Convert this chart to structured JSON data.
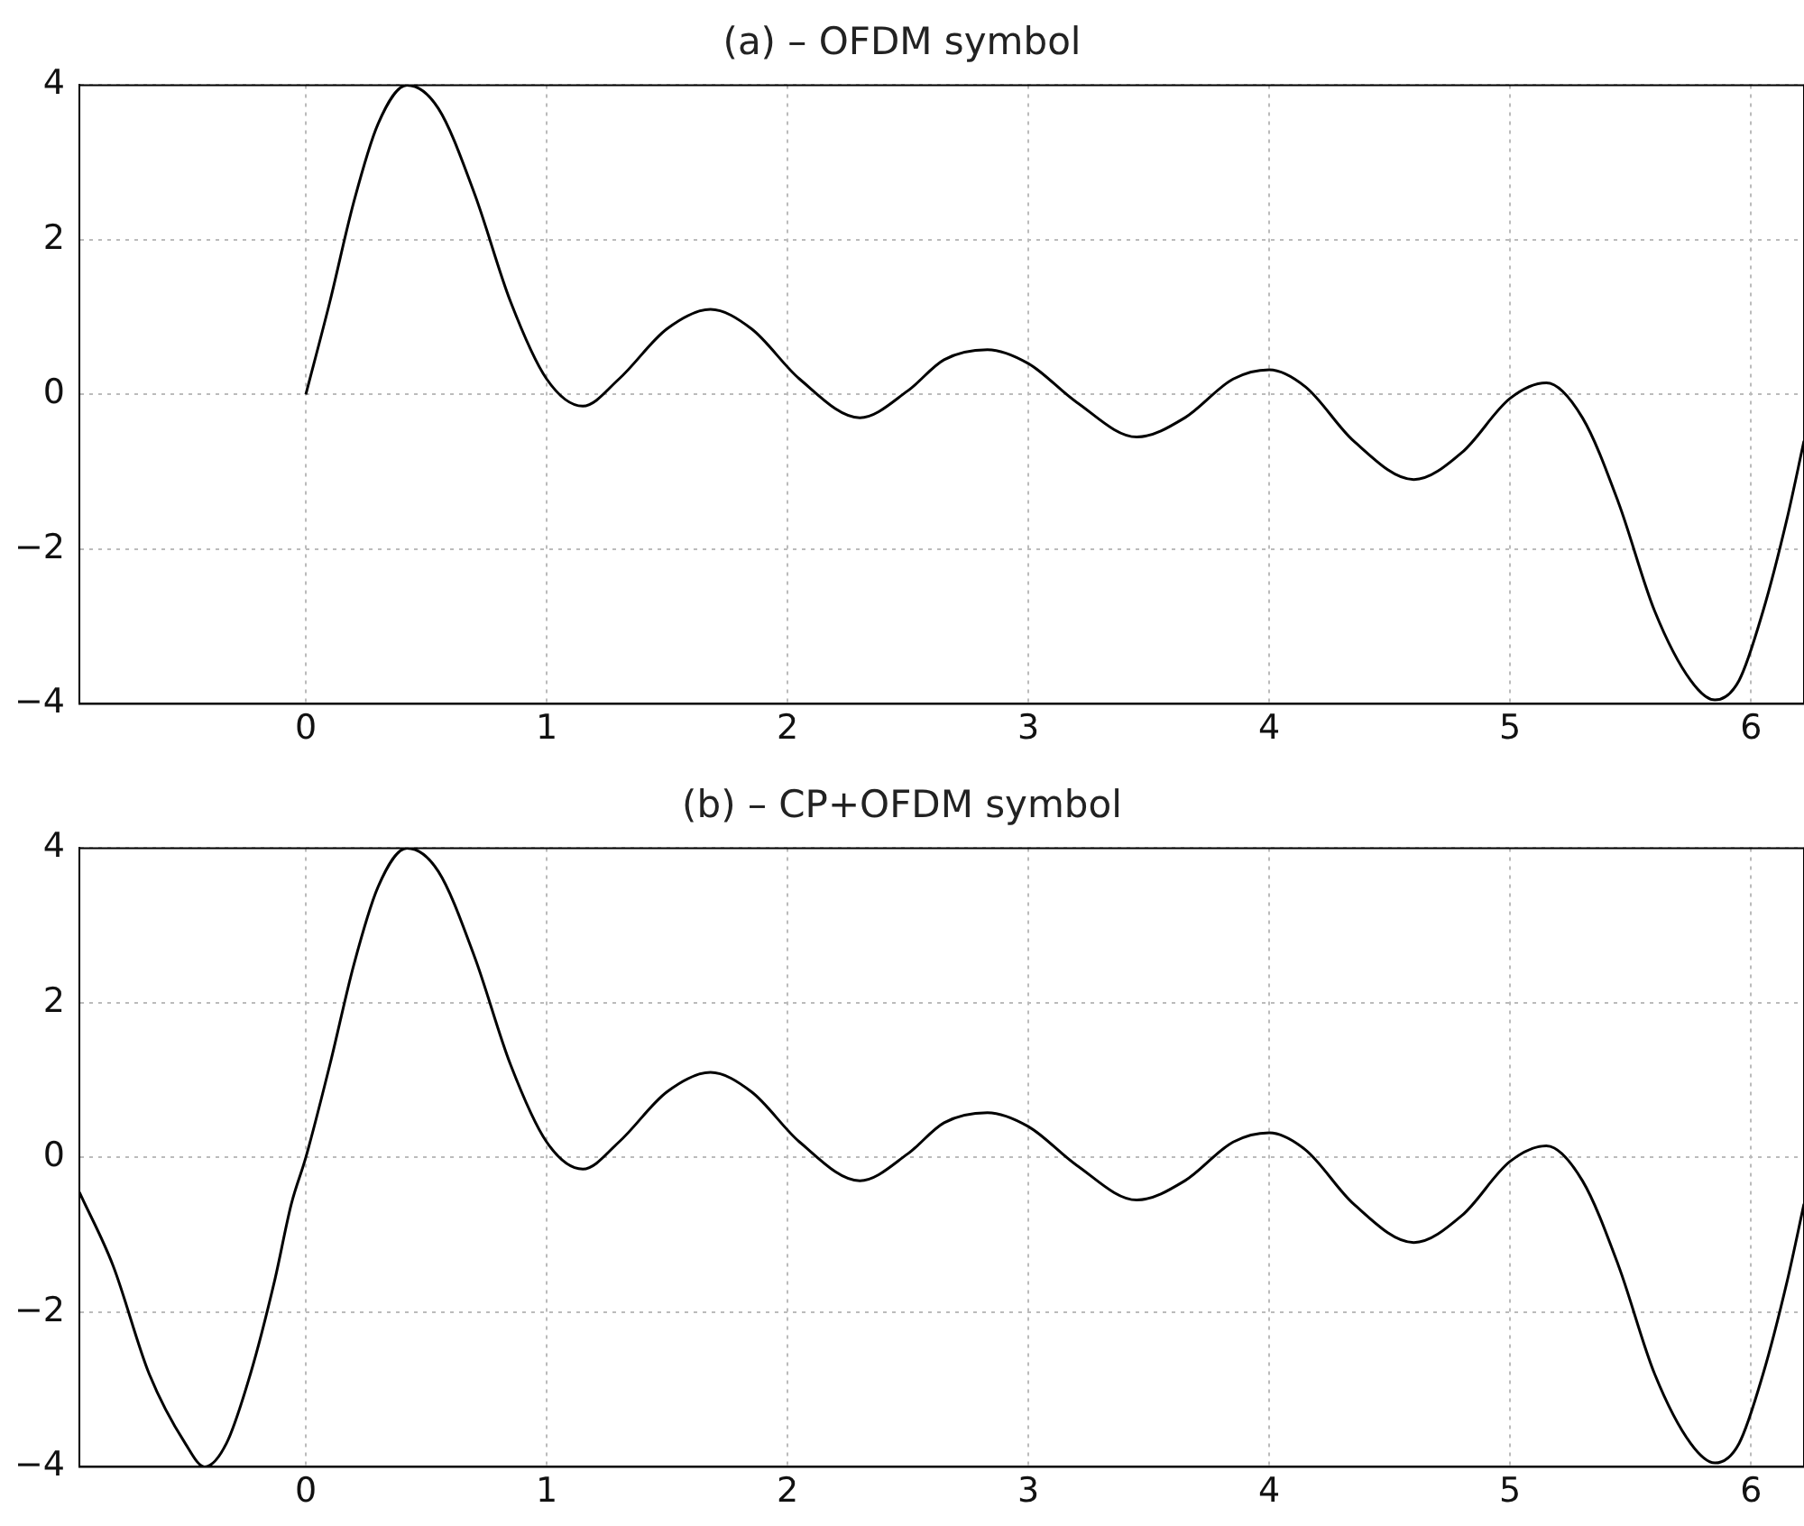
{
  "chart_data": [
    {
      "type": "line",
      "title": "(a) – OFDM symbol",
      "xlim": [
        -0.94,
        6.22
      ],
      "xticks": [
        0,
        1,
        2,
        3,
        4,
        5,
        6
      ],
      "ylim": [
        -4,
        4
      ],
      "yticks": [
        -4,
        -2,
        0,
        2,
        4
      ],
      "grid": true,
      "series": [
        {
          "color": "#000000",
          "x": [
            0,
            0.1,
            0.2,
            0.3,
            0.42,
            0.55,
            0.7,
            0.85,
            1.0,
            1.15,
            1.3,
            1.5,
            1.68,
            1.85,
            2.05,
            2.3,
            2.5,
            2.65,
            2.83,
            3.0,
            3.2,
            3.45,
            3.65,
            3.85,
            4.0,
            4.15,
            4.35,
            4.6,
            4.8,
            5.0,
            5.15,
            5.3,
            5.45,
            5.6,
            5.75,
            5.85,
            5.95,
            6.05,
            6.15,
            6.22
          ],
          "values": [
            0,
            1.2,
            2.5,
            3.5,
            4.0,
            3.7,
            2.6,
            1.2,
            0.2,
            -0.15,
            0.2,
            0.85,
            1.1,
            0.85,
            0.2,
            -0.3,
            0.05,
            0.45,
            0.58,
            0.4,
            -0.1,
            -0.55,
            -0.3,
            0.2,
            0.32,
            0.1,
            -0.6,
            -1.1,
            -0.75,
            -0.05,
            0.15,
            -0.3,
            -1.4,
            -2.8,
            -3.7,
            -3.95,
            -3.7,
            -2.8,
            -1.6,
            -0.6
          ]
        }
      ]
    },
    {
      "type": "line",
      "title": "(b) – CP+OFDM symbol",
      "xlim": [
        -0.94,
        6.22
      ],
      "xticks": [
        0,
        1,
        2,
        3,
        4,
        5,
        6
      ],
      "ylim": [
        -4,
        4
      ],
      "yticks": [
        -4,
        -2,
        0,
        2,
        4
      ],
      "grid": true,
      "series": [
        {
          "color": "#000000",
          "x": [
            -0.94,
            -0.8,
            -0.65,
            -0.5,
            -0.42,
            -0.33,
            -0.23,
            -0.13,
            -0.06,
            0,
            0.1,
            0.2,
            0.3,
            0.42,
            0.55,
            0.7,
            0.85,
            1.0,
            1.15,
            1.3,
            1.5,
            1.68,
            1.85,
            2.05,
            2.3,
            2.5,
            2.65,
            2.83,
            3.0,
            3.2,
            3.45,
            3.65,
            3.85,
            4.0,
            4.15,
            4.35,
            4.6,
            4.8,
            5.0,
            5.15,
            5.3,
            5.45,
            5.6,
            5.75,
            5.85,
            5.95,
            6.05,
            6.15,
            6.22
          ],
          "values": [
            -0.45,
            -1.4,
            -2.8,
            -3.7,
            -4.0,
            -3.7,
            -2.8,
            -1.6,
            -0.6,
            0,
            1.2,
            2.5,
            3.5,
            4.0,
            3.7,
            2.6,
            1.2,
            0.2,
            -0.15,
            0.2,
            0.85,
            1.1,
            0.85,
            0.2,
            -0.3,
            0.05,
            0.45,
            0.58,
            0.4,
            -0.1,
            -0.55,
            -0.3,
            0.2,
            0.32,
            0.1,
            -0.6,
            -1.1,
            -0.75,
            -0.05,
            0.15,
            -0.3,
            -1.4,
            -2.8,
            -3.7,
            -3.95,
            -3.7,
            -2.8,
            -1.6,
            -0.6
          ]
        }
      ]
    }
  ]
}
